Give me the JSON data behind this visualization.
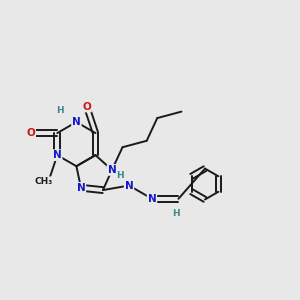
{
  "bg_color": "#e8e8e8",
  "bond_color": "#1a1a1a",
  "bond_width": 1.4,
  "atom_colors": {
    "N": "#1515cc",
    "O": "#cc1515",
    "H": "#3a8a8a",
    "C": "#1a1a1a"
  },
  "font_size": 7.5,
  "font_size_h": 6.5
}
